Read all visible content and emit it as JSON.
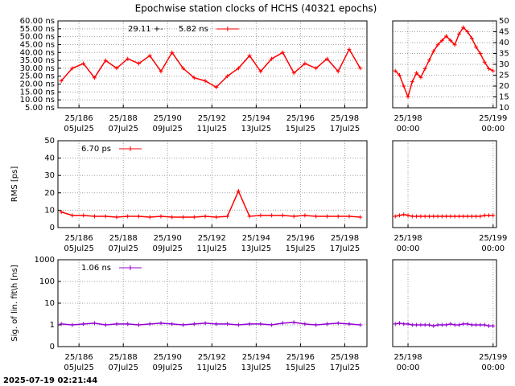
{
  "title": "Epochwise station clocks of HCHS (40321 epochs)",
  "timestamp": "2025-07-19 02:21:44",
  "chart_data": [
    {
      "type": "line",
      "grid": true,
      "log": false,
      "legend": "top-left",
      "x": [
        185.2,
        185.7,
        186.2,
        186.7,
        187.2,
        187.7,
        188.2,
        188.7,
        189.2,
        189.7,
        190.2,
        190.7,
        191.2,
        191.7,
        192.2,
        192.7,
        193.2,
        193.7,
        194.2,
        194.7,
        195.2,
        195.7,
        196.2,
        196.7,
        197.2,
        197.7,
        198.2,
        198.7
      ],
      "series": [
        {
          "name": "29.11 +-      5.82 ns",
          "color": "#ff0000",
          "values": [
            22,
            30,
            33,
            24,
            35,
            30,
            36,
            33,
            38,
            28,
            40,
            30,
            24,
            22,
            18,
            25,
            30,
            38,
            28,
            36,
            40,
            27,
            33,
            30,
            36,
            28,
            42,
            30
          ]
        }
      ],
      "xlim": [
        185.05,
        199.0
      ],
      "xticks": [
        {
          "value": 186,
          "label": "25/186",
          "date": "05Jul25"
        },
        {
          "value": 188,
          "label": "25/188",
          "date": "07Jul25"
        },
        {
          "value": 190,
          "label": "25/190",
          "date": "09Jul25"
        },
        {
          "value": 192,
          "label": "25/192",
          "date": "11Jul25"
        },
        {
          "value": 194,
          "label": "25/194",
          "date": "13Jul25"
        },
        {
          "value": 196,
          "label": "25/196",
          "date": "15Jul25"
        },
        {
          "value": 198,
          "label": "25/198",
          "date": "17Jul25"
        }
      ],
      "ylim": [
        5,
        60
      ],
      "yticks": [
        {
          "value": 5,
          "label": "5.00 ns"
        },
        {
          "value": 10,
          "label": "10.00 ns"
        },
        {
          "value": 15,
          "label": "15.00 ns"
        },
        {
          "value": 20,
          "label": "20.00 ns"
        },
        {
          "value": 25,
          "label": "25.00 ns"
        },
        {
          "value": 30,
          "label": "30.00 ns"
        },
        {
          "value": 35,
          "label": "35.00 ns"
        },
        {
          "value": 40,
          "label": "40.00 ns"
        },
        {
          "value": 45,
          "label": "45.00 ns"
        },
        {
          "value": 50,
          "label": "50.00 ns"
        },
        {
          "value": 55,
          "label": "55.00 ns"
        },
        {
          "value": 60,
          "label": "60.00 ns"
        }
      ]
    },
    {
      "type": "line",
      "grid": true,
      "log": false,
      "ytick_side": "right",
      "x": [
        197.85,
        197.9,
        197.95,
        198.0,
        198.05,
        198.1,
        198.15,
        198.2,
        198.25,
        198.3,
        198.35,
        198.4,
        198.45,
        198.5,
        198.55,
        198.6,
        198.65,
        198.7,
        198.75,
        198.8,
        198.85,
        198.9,
        198.95,
        199.0
      ],
      "series": [
        {
          "color": "#ff0000",
          "values": [
            27,
            25,
            20,
            15,
            22,
            26,
            24,
            28,
            32,
            36,
            39,
            41,
            43,
            41,
            39,
            44,
            47,
            45,
            42,
            38,
            35,
            31,
            28,
            27
          ]
        }
      ],
      "xlim": [
        197.82,
        199.04
      ],
      "xticks": [
        {
          "value": 198,
          "label": "25/198",
          "date": "00:00"
        },
        {
          "value": 199,
          "label": "25/199",
          "date": "00:00"
        }
      ],
      "ylim": [
        10,
        50
      ],
      "yticks": [
        10,
        15,
        20,
        25,
        30,
        35,
        40,
        45,
        50
      ]
    },
    {
      "type": "line",
      "grid": true,
      "log": false,
      "legend": "top-left",
      "ylabel": "RMS [ps]",
      "x": [
        185.2,
        185.7,
        186.2,
        186.7,
        187.2,
        187.7,
        188.2,
        188.7,
        189.2,
        189.7,
        190.2,
        190.7,
        191.2,
        191.7,
        192.2,
        192.7,
        193.2,
        193.7,
        194.2,
        194.7,
        195.2,
        195.7,
        196.2,
        196.7,
        197.2,
        197.7,
        198.2,
        198.7
      ],
      "series": [
        {
          "name": "6.70 ps",
          "color": "#ff0000",
          "values": [
            9,
            7,
            7,
            6.5,
            6.5,
            6,
            6.5,
            6.5,
            6,
            6.5,
            6,
            6,
            6,
            6.5,
            6,
            6.5,
            21,
            6.5,
            7,
            7,
            7,
            6.5,
            7,
            6.5,
            6.5,
            6.5,
            6.5,
            6
          ]
        }
      ],
      "xlim": [
        185.05,
        199.0
      ],
      "xticks": [
        {
          "value": 186,
          "label": "25/186",
          "date": "05Jul25"
        },
        {
          "value": 188,
          "label": "25/188",
          "date": "07Jul25"
        },
        {
          "value": 190,
          "label": "25/190",
          "date": "09Jul25"
        },
        {
          "value": 192,
          "label": "25/192",
          "date": "11Jul25"
        },
        {
          "value": 194,
          "label": "25/194",
          "date": "13Jul25"
        },
        {
          "value": 196,
          "label": "25/196",
          "date": "15Jul25"
        },
        {
          "value": 198,
          "label": "25/198",
          "date": "17Jul25"
        }
      ],
      "ylim": [
        0,
        50
      ],
      "yticks": [
        0,
        10,
        20,
        30,
        40,
        50
      ]
    },
    {
      "type": "line",
      "grid": true,
      "log": false,
      "x": [
        197.85,
        197.9,
        197.95,
        198.0,
        198.05,
        198.1,
        198.15,
        198.2,
        198.25,
        198.3,
        198.35,
        198.4,
        198.45,
        198.5,
        198.55,
        198.6,
        198.65,
        198.7,
        198.75,
        198.8,
        198.85,
        198.9,
        198.95,
        199.0
      ],
      "series": [
        {
          "color": "#ff0000",
          "values": [
            6.5,
            7,
            7.5,
            7,
            6.5,
            6.5,
            6.5,
            6.5,
            6.5,
            6.5,
            6.5,
            6.5,
            6.5,
            6.5,
            6.5,
            6.5,
            6.5,
            6.5,
            6.5,
            6.5,
            6.5,
            7,
            7,
            7
          ]
        }
      ],
      "xlim": [
        197.82,
        199.04
      ],
      "xticks": [
        {
          "value": 198,
          "label": "25/198",
          "date": "00:00"
        },
        {
          "value": 199,
          "label": "25/199",
          "date": "00:00"
        }
      ],
      "ylim": [
        0,
        50
      ]
    },
    {
      "type": "line",
      "grid": true,
      "log": true,
      "legend": "top-left",
      "ylabel": "Sig. of lin. fit\\h [ns]",
      "x": [
        185.2,
        185.7,
        186.2,
        186.7,
        187.2,
        187.7,
        188.2,
        188.7,
        189.2,
        189.7,
        190.2,
        190.7,
        191.2,
        191.7,
        192.2,
        192.7,
        193.2,
        193.7,
        194.2,
        194.7,
        195.2,
        195.7,
        196.2,
        196.7,
        197.2,
        197.7,
        198.2,
        198.7
      ],
      "series": [
        {
          "name": "1.06 ns",
          "color": "#9400d3",
          "values": [
            1.1,
            1.0,
            1.1,
            1.2,
            1.0,
            1.1,
            1.1,
            1.0,
            1.1,
            1.2,
            1.1,
            1.0,
            1.1,
            1.2,
            1.1,
            1.1,
            1.0,
            1.1,
            1.1,
            1.0,
            1.2,
            1.3,
            1.1,
            1.0,
            1.1,
            1.2,
            1.1,
            1.0
          ]
        }
      ],
      "xlim": [
        185.05,
        199.0
      ],
      "xticks": [
        {
          "value": 186,
          "label": "25/186",
          "date": "05Jul25"
        },
        {
          "value": 188,
          "label": "25/188",
          "date": "07Jul25"
        },
        {
          "value": 190,
          "label": "25/190",
          "date": "09Jul25"
        },
        {
          "value": 192,
          "label": "25/192",
          "date": "11Jul25"
        },
        {
          "value": 194,
          "label": "25/194",
          "date": "13Jul25"
        },
        {
          "value": 196,
          "label": "25/196",
          "date": "15Jul25"
        },
        {
          "value": 198,
          "label": "25/198",
          "date": "17Jul25"
        }
      ],
      "ylim": [
        0.1,
        1000
      ],
      "yticks": [
        {
          "value": 0.1,
          "label": "0"
        },
        1,
        10,
        100,
        1000
      ]
    },
    {
      "type": "line",
      "grid": true,
      "log": true,
      "x": [
        197.85,
        197.9,
        197.95,
        198.0,
        198.05,
        198.1,
        198.15,
        198.2,
        198.25,
        198.3,
        198.35,
        198.4,
        198.45,
        198.5,
        198.55,
        198.6,
        198.65,
        198.7,
        198.75,
        198.8,
        198.85,
        198.9,
        198.95,
        199.0
      ],
      "series": [
        {
          "color": "#9400d3",
          "values": [
            1.1,
            1.2,
            1.1,
            1.1,
            1.0,
            1.0,
            1.0,
            1.0,
            1.0,
            0.9,
            1.0,
            1.0,
            1.0,
            1.1,
            1.0,
            1.0,
            1.1,
            1.1,
            1.0,
            1.0,
            1.0,
            1.0,
            0.9,
            0.9
          ]
        }
      ],
      "xlim": [
        197.82,
        199.04
      ],
      "xticks": [
        {
          "value": 198,
          "label": "25/198",
          "date": "00:00"
        },
        {
          "value": 199,
          "label": "25/199",
          "date": "00:00"
        }
      ],
      "ylim": [
        0.1,
        1000
      ]
    }
  ]
}
